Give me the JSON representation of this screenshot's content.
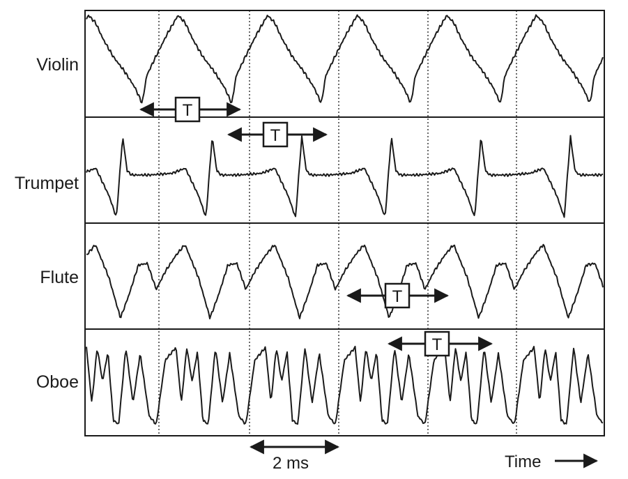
{
  "figure": {
    "instruments": [
      {
        "name": "Violin"
      },
      {
        "name": "Trumpet"
      },
      {
        "name": "Flute"
      },
      {
        "name": "Oboe"
      }
    ],
    "period_label": "T",
    "scale_label": "2 ms",
    "time_label": "Time"
  },
  "colors": {
    "stroke": "#1a1a1a",
    "background": "#ffffff"
  }
}
